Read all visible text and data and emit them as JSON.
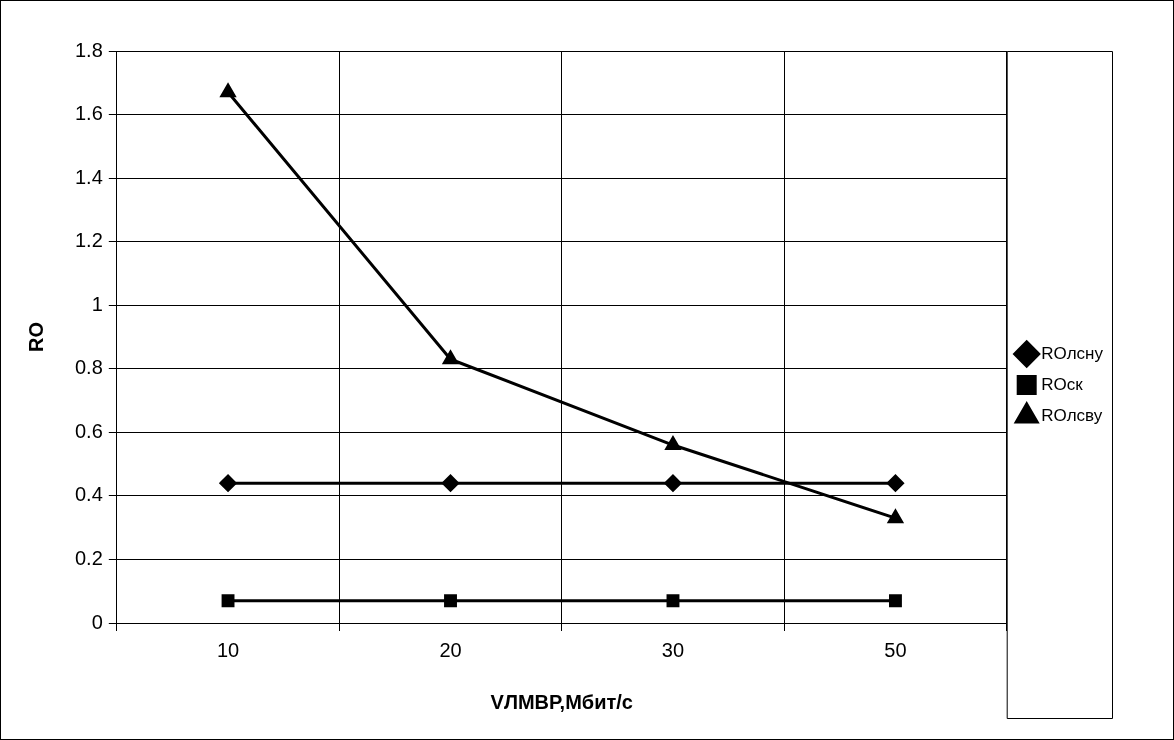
{
  "chart_data": {
    "type": "line",
    "xlabel": "VЛМВР,Мбит/с",
    "ylabel": "RO",
    "categories": [
      "10",
      "20",
      "30",
      "50"
    ],
    "series": [
      {
        "name": "ROлсну",
        "color": "#000000",
        "marker": "diamond",
        "values": [
          0.44,
          0.44,
          0.44,
          0.44
        ]
      },
      {
        "name": "ROск",
        "color": "#000000",
        "marker": "square",
        "values": [
          0.07,
          0.07,
          0.07,
          0.07
        ]
      },
      {
        "name": "ROлсву",
        "color": "#000000",
        "marker": "triangle",
        "values": [
          1.67,
          0.83,
          0.56,
          0.33
        ]
      }
    ],
    "ylim": [
      0,
      1.8
    ],
    "yticks": [
      0,
      0.2,
      0.4,
      0.6,
      0.8,
      1,
      1.2,
      1.4,
      1.6,
      1.8
    ],
    "grid": true,
    "legend": "right",
    "line_style": "solid"
  }
}
